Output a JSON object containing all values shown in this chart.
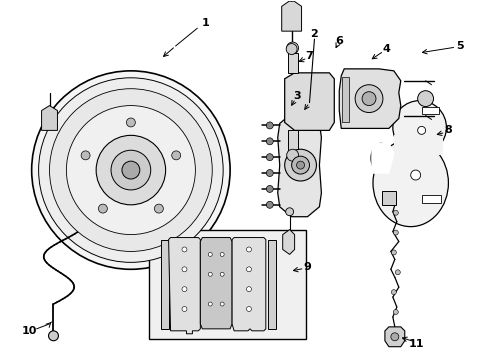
{
  "bg_color": "#ffffff",
  "line_color": "#000000",
  "figsize": [
    4.89,
    3.6
  ],
  "dpi": 100
}
